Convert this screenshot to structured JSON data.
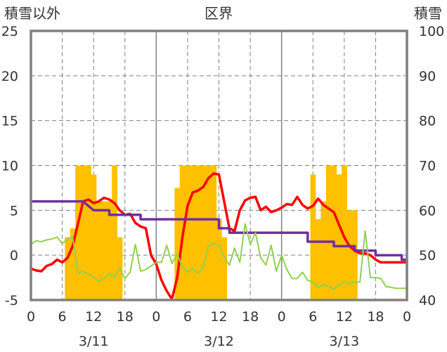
{
  "chart_data": {
    "type": "line",
    "title": "区界",
    "ylabel_left": "積雪以外",
    "ylabel_right": "積雪",
    "ylim_left": [
      -5,
      25
    ],
    "ylim_right": [
      40,
      100
    ],
    "yticks_left": [
      "25",
      "20",
      "15",
      "10",
      "5",
      "0",
      "-5"
    ],
    "yticks_right": [
      "100",
      "90",
      "80",
      "70",
      "60",
      "50",
      "40"
    ],
    "x_range_hours": [
      0,
      72
    ],
    "xticks": [
      "0",
      "6",
      "12",
      "18",
      "0",
      "6",
      "12",
      "18",
      "0",
      "6",
      "12",
      "18",
      "0"
    ],
    "date_labels": [
      "3/11",
      "3/12",
      "3/13"
    ],
    "grid": true,
    "colors": {
      "snow_bars": "#ffc000",
      "red_series": "#ff0000",
      "purple_series": "#7030a0",
      "green_series": "#92d050",
      "axis": "#808080",
      "grid": "#808080"
    },
    "series": [
      {
        "kind": "bar",
        "axis": "right",
        "color": "#ffc000",
        "x": [
          7,
          8,
          9,
          10,
          11,
          12,
          13,
          14,
          15,
          16,
          17,
          28,
          29,
          30,
          31,
          32,
          33,
          34,
          35,
          36,
          37,
          54,
          55,
          56,
          57,
          58,
          59,
          60,
          61,
          62
        ],
        "values": [
          54,
          56,
          70,
          70,
          70,
          68,
          62,
          62,
          62,
          70,
          54,
          65,
          70,
          70,
          70,
          70,
          70,
          70,
          70,
          58,
          54,
          68,
          58,
          62,
          70,
          70,
          68,
          70,
          60,
          60
        ]
      },
      {
        "kind": "line",
        "axis": "left",
        "color": "#ff0000",
        "x": [
          0,
          1,
          2,
          3,
          4,
          5,
          6,
          7,
          8,
          9,
          10,
          11,
          12,
          13,
          14,
          15,
          16,
          17,
          18,
          19,
          20,
          21,
          22,
          23,
          24,
          25,
          26,
          27,
          28,
          29,
          30,
          31,
          32,
          33,
          34,
          35,
          36,
          37,
          38,
          39,
          40,
          41,
          42,
          43,
          44,
          45,
          46,
          47,
          48,
          49,
          50,
          51,
          52,
          53,
          54,
          55,
          56,
          57,
          58,
          59,
          60,
          61,
          62,
          63,
          64,
          65,
          66,
          67,
          68,
          69,
          70,
          71,
          72
        ],
        "values": [
          -1.5,
          -1.7,
          -1.8,
          -1.2,
          -1,
          -0.5,
          -0.8,
          -0.3,
          1,
          3.5,
          6,
          6.2,
          5.8,
          6,
          6.4,
          6.2,
          5.8,
          5,
          4.5,
          4.6,
          3.6,
          3.2,
          3,
          0,
          -1,
          -2.8,
          -4,
          -4.9,
          -2.5,
          2,
          5.5,
          7,
          7.2,
          7.6,
          8.6,
          9.1,
          9,
          6,
          3,
          2.7,
          5,
          6.1,
          6.4,
          6.5,
          5,
          5.4,
          4.8,
          5,
          5.3,
          5.7,
          5.6,
          6.5,
          5.6,
          5.2,
          5.5,
          6.3,
          5.6,
          5.2,
          4.8,
          3.4,
          2,
          1,
          0.5,
          0.2,
          0.2,
          0,
          -0.5,
          -0.8,
          -0.8,
          -0.8,
          -0.8,
          -0.8,
          -0.8
        ]
      },
      {
        "kind": "line",
        "axis": "right",
        "color": "#7030a0",
        "x": [
          0,
          10,
          11,
          12,
          15,
          15,
          21,
          21,
          36,
          36,
          38,
          38,
          53,
          53,
          58,
          58,
          62,
          62,
          66,
          66,
          71,
          71,
          72
        ],
        "values": [
          62,
          62,
          61,
          60,
          60,
          59,
          59,
          58,
          58,
          56,
          56,
          55,
          55,
          53,
          53,
          52,
          52,
          51,
          51,
          50,
          50,
          49,
          49
        ]
      },
      {
        "kind": "line",
        "axis": "left",
        "color": "#92d050",
        "x": [
          0,
          1,
          2,
          3,
          4,
          5,
          6,
          7,
          8,
          9,
          10,
          11,
          12,
          13,
          14,
          15,
          16,
          17,
          18,
          19,
          20,
          21,
          22,
          23,
          24,
          25,
          26,
          27,
          28,
          29,
          30,
          31,
          32,
          33,
          34,
          35,
          36,
          37,
          38,
          39,
          40,
          41,
          42,
          43,
          44,
          45,
          46,
          47,
          48,
          49,
          50,
          51,
          52,
          53,
          54,
          55,
          56,
          57,
          58,
          59,
          60,
          61,
          62,
          63,
          64,
          65,
          66,
          67,
          68,
          69,
          70,
          71,
          72
        ],
        "values": [
          1.2,
          1.6,
          1.5,
          1.7,
          1.8,
          2,
          1.3,
          1.8,
          2,
          -2,
          -1.8,
          -2.1,
          -2.5,
          -2.9,
          -2.6,
          -2,
          -2.5,
          -1.5,
          -2.6,
          -1.9,
          1.2,
          -1.8,
          -1.6,
          -1.2,
          -0.8,
          -0.8,
          1.1,
          -0.9,
          0.1,
          -1.3,
          -1.9,
          -1.5,
          -2,
          -1.3,
          1,
          1.3,
          1.1,
          -0.2,
          -1.1,
          0.8,
          -0.8,
          3.5,
          1.2,
          2.5,
          -0.3,
          -1.1,
          1.1,
          -1.8,
          0,
          -1.6,
          -2.6,
          -2.6,
          -1.9,
          -2.8,
          -3,
          -3.6,
          -3.3,
          -3.5,
          -3.8,
          -3.3,
          -3,
          -3.2,
          -3,
          -3,
          2.7,
          -2.5,
          -2.5,
          -2.6,
          -3.5,
          -3.6,
          -3.7,
          -3.7,
          -3.7
        ]
      }
    ]
  }
}
